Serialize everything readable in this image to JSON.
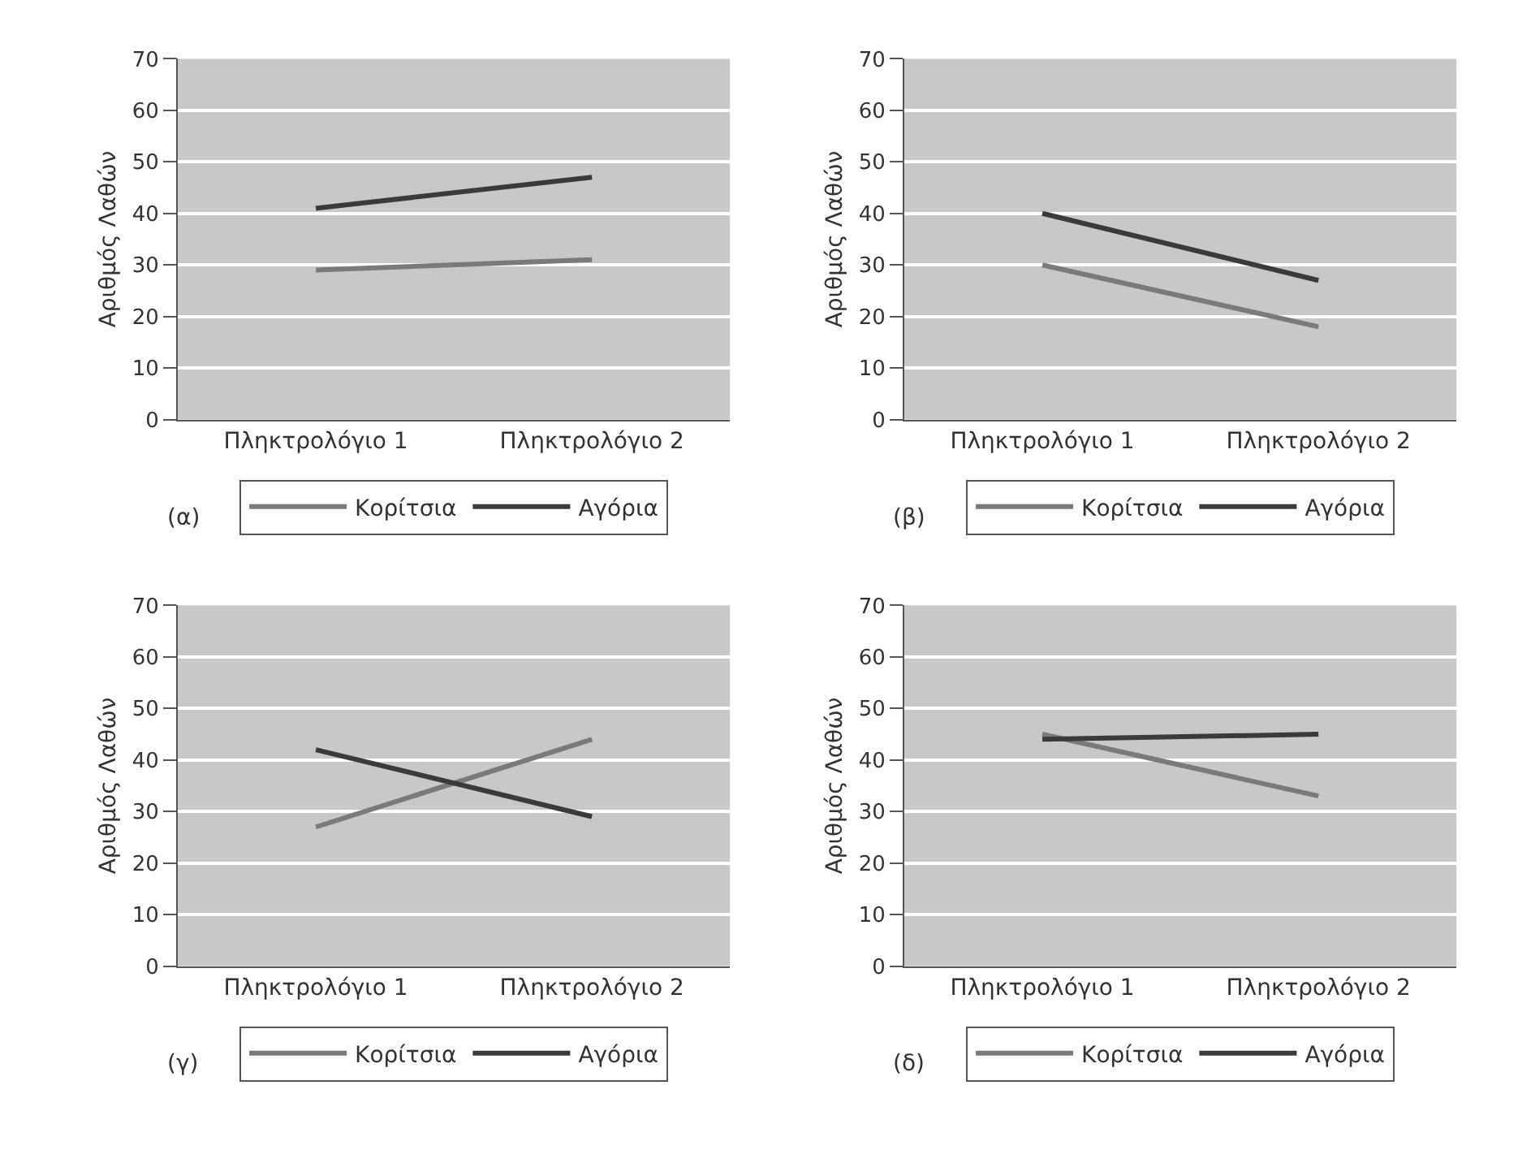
{
  "chart_data": [
    {
      "type": "line",
      "categories": [
        "Πληκτρολόγιο 1",
        "Πληκτρολόγιο 2"
      ],
      "ylabel": "Αριθμός Λαθών",
      "ylim": [
        0,
        70
      ],
      "yticks": [
        0,
        10,
        20,
        30,
        40,
        50,
        60,
        70
      ],
      "grid": "y",
      "legend": "bottom",
      "annotations": [
        "(α)"
      ],
      "series": [
        {
          "name": "Κορίτσια",
          "color": "#7a7a7a",
          "values": [
            29,
            31
          ]
        },
        {
          "name": "Αγόρια",
          "color": "#3a3a3a",
          "values": [
            41,
            47
          ]
        }
      ]
    },
    {
      "type": "line",
      "categories": [
        "Πληκτρολόγιο 1",
        "Πληκτρολόγιο 2"
      ],
      "ylabel": "Αριθμός Λαθών",
      "ylim": [
        0,
        70
      ],
      "yticks": [
        0,
        10,
        20,
        30,
        40,
        50,
        60,
        70
      ],
      "grid": "y",
      "legend": "bottom",
      "annotations": [
        "(β)"
      ],
      "series": [
        {
          "name": "Κορίτσια",
          "color": "#7a7a7a",
          "values": [
            30,
            18
          ]
        },
        {
          "name": "Αγόρια",
          "color": "#3a3a3a",
          "values": [
            40,
            27
          ]
        }
      ]
    },
    {
      "type": "line",
      "categories": [
        "Πληκτρολόγιο 1",
        "Πληκτρολόγιο 2"
      ],
      "ylabel": "Αριθμός Λαθών",
      "ylim": [
        0,
        70
      ],
      "yticks": [
        0,
        10,
        20,
        30,
        40,
        50,
        60,
        70
      ],
      "grid": "y",
      "legend": "bottom",
      "annotations": [
        "(γ)"
      ],
      "series": [
        {
          "name": "Κορίτσια",
          "color": "#7a7a7a",
          "values": [
            27,
            44
          ]
        },
        {
          "name": "Αγόρια",
          "color": "#3a3a3a",
          "values": [
            42,
            29
          ]
        }
      ]
    },
    {
      "type": "line",
      "categories": [
        "Πληκτρολόγιο 1",
        "Πληκτρολόγιο 2"
      ],
      "ylabel": "Αριθμός Λαθών",
      "ylim": [
        0,
        70
      ],
      "yticks": [
        0,
        10,
        20,
        30,
        40,
        50,
        60,
        70
      ],
      "grid": "y",
      "legend": "bottom",
      "annotations": [
        "(δ)"
      ],
      "series": [
        {
          "name": "Κορίτσια",
          "color": "#7a7a7a",
          "values": [
            45,
            33
          ]
        },
        {
          "name": "Αγόρια",
          "color": "#3a3a3a",
          "values": [
            44,
            45
          ]
        }
      ]
    }
  ]
}
